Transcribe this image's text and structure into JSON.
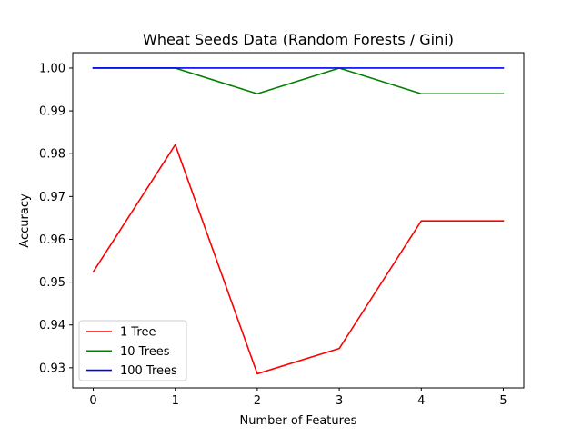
{
  "chart_data": {
    "type": "line",
    "title": "Wheat Seeds Data (Random Forests / Gini)",
    "xlabel": "Number of Features",
    "ylabel": "Accuracy",
    "x": [
      0,
      1,
      2,
      3,
      4,
      5
    ],
    "xticks": [
      "0",
      "1",
      "2",
      "3",
      "4",
      "5"
    ],
    "yticks": [
      "0.93",
      "0.94",
      "0.95",
      "0.96",
      "0.97",
      "0.98",
      "0.99",
      "1.00"
    ],
    "xlim": [
      -0.25,
      5.25
    ],
    "ylim": [
      0.9253,
      1.0036
    ],
    "grid": false,
    "legend_position": "lower-left",
    "series": [
      {
        "name": "1 Tree",
        "color": "#ff0000",
        "values": [
          0.9524,
          0.9821,
          0.9286,
          0.9345,
          0.9643,
          0.9643
        ]
      },
      {
        "name": "10 Trees",
        "color": "#008000",
        "values": [
          1.0,
          1.0,
          0.994,
          1.0,
          0.994,
          0.994
        ]
      },
      {
        "name": "100 Trees",
        "color": "#0000ff",
        "values": [
          1.0,
          1.0,
          1.0,
          1.0,
          1.0,
          1.0
        ]
      }
    ]
  }
}
